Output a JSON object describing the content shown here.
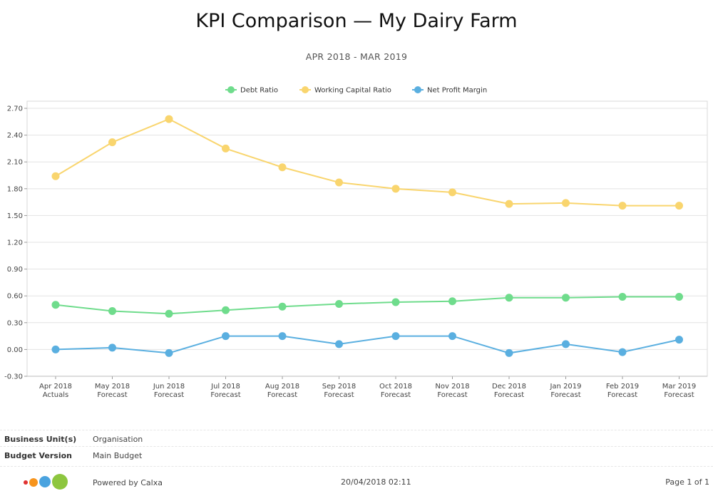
{
  "header": {
    "title": "KPI Comparison — My Dairy Farm",
    "subtitle": "APR 2018 - MAR 2019"
  },
  "chart_data": {
    "type": "line",
    "categories": [
      [
        "Apr 2018",
        "Actuals"
      ],
      [
        "May 2018",
        "Forecast"
      ],
      [
        "Jun 2018",
        "Forecast"
      ],
      [
        "Jul 2018",
        "Forecast"
      ],
      [
        "Aug 2018",
        "Forecast"
      ],
      [
        "Sep 2018",
        "Forecast"
      ],
      [
        "Oct 2018",
        "Forecast"
      ],
      [
        "Nov 2018",
        "Forecast"
      ],
      [
        "Dec 2018",
        "Forecast"
      ],
      [
        "Jan 2019",
        "Forecast"
      ],
      [
        "Feb 2019",
        "Forecast"
      ],
      [
        "Mar 2019",
        "Forecast"
      ]
    ],
    "series": [
      {
        "name": "Debt Ratio",
        "color": "#6fdc8c",
        "values": [
          0.5,
          0.43,
          0.4,
          0.44,
          0.48,
          0.51,
          0.53,
          0.54,
          0.58,
          0.58,
          0.59,
          0.59
        ]
      },
      {
        "name": "Working Capital Ratio",
        "color": "#f9d56e",
        "values": [
          1.94,
          2.32,
          2.58,
          2.25,
          2.04,
          1.87,
          1.8,
          1.76,
          1.63,
          1.64,
          1.61,
          1.61
        ]
      },
      {
        "name": "Net Profit Margin",
        "color": "#5aafe0",
        "values": [
          0.0,
          0.02,
          -0.04,
          0.15,
          0.15,
          0.06,
          0.15,
          0.15,
          -0.04,
          0.06,
          -0.03,
          0.11
        ]
      }
    ],
    "yticks": [
      "-0.30",
      "0.00",
      "0.30",
      "0.60",
      "0.90",
      "1.20",
      "1.50",
      "1.80",
      "2.10",
      "2.40",
      "2.70"
    ],
    "ylim": [
      -0.3,
      2.78
    ],
    "grid": true,
    "legend": "top-center"
  },
  "info": {
    "business_unit_label": "Business Unit(s)",
    "business_unit_value": "Organisation",
    "budget_version_label": "Budget Version",
    "budget_version_value": "Main Budget"
  },
  "footer": {
    "powered_by": "Powered by Calxa",
    "timestamp": "20/04/2018 02:11",
    "page": "Page 1 of 1",
    "logo_colors": [
      "#e03131",
      "#f7941d",
      "#4aa3df",
      "#8dc63f"
    ]
  }
}
